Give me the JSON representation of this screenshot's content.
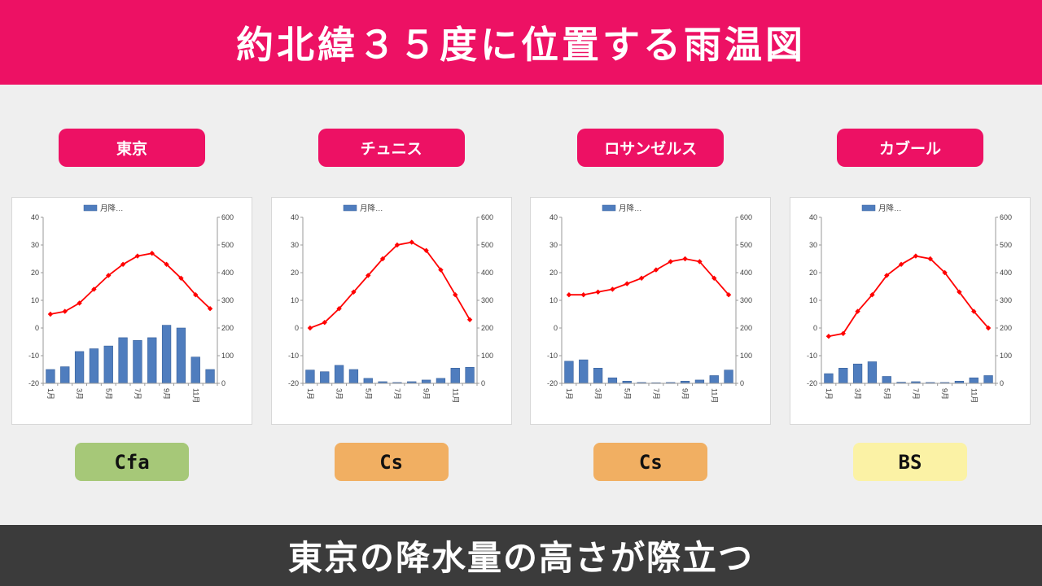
{
  "header": {
    "title": "約北緯３５度に位置する雨温図"
  },
  "footer": {
    "caption": "東京の降水量の高さが際立つ"
  },
  "colors": {
    "accent_pink": "#ED1164",
    "page_bg": "#EFEFEF",
    "footer_bg": "#3B3B3B",
    "bar_blue": "#4F7DBE",
    "bar_border": "#38609B",
    "line_red": "#FF0000",
    "axis_gray": "#9A9A9A",
    "tick_text": "#404040"
  },
  "axes": {
    "temp": {
      "min": -20,
      "max": 40,
      "ticks": [
        40,
        30,
        20,
        10,
        0,
        -10,
        -20
      ]
    },
    "precip": {
      "min": 0,
      "max": 600,
      "ticks": [
        600,
        500,
        400,
        300,
        200,
        100,
        0
      ]
    },
    "visible_month_ticks": [
      "1月",
      "3月",
      "5月",
      "7月",
      "9月",
      "11月"
    ]
  },
  "chart_data": [
    {
      "type": "bar+line",
      "city": "東京",
      "koppen": "Cfa",
      "koppen_color": "#A6C878",
      "legend": "月降…",
      "months": [
        "1月",
        "2月",
        "3月",
        "4月",
        "5月",
        "6月",
        "7月",
        "8月",
        "9月",
        "10月",
        "11月",
        "12月"
      ],
      "temperature_c": [
        5,
        6,
        9,
        14,
        19,
        23,
        26,
        27,
        23,
        18,
        12,
        7
      ],
      "precipitation_mm": [
        50,
        60,
        115,
        125,
        135,
        165,
        155,
        165,
        210,
        200,
        95,
        50
      ],
      "temp_axis_range": [
        -20,
        40
      ],
      "precip_axis_range": [
        0,
        600
      ]
    },
    {
      "type": "bar+line",
      "city": "チュニス",
      "koppen": "Cs",
      "koppen_color": "#F1AF62",
      "legend": "月降…",
      "months": [
        "1月",
        "2月",
        "3月",
        "4月",
        "5月",
        "6月",
        "7月",
        "8月",
        "9月",
        "10月",
        "11月",
        "12月"
      ],
      "temperature_c": [
        0,
        2,
        7,
        13,
        19,
        25,
        30,
        31,
        28,
        21,
        12,
        3
      ],
      "precipitation_mm": [
        48,
        42,
        65,
        50,
        18,
        6,
        3,
        6,
        12,
        18,
        55,
        58
      ],
      "temp_axis_range": [
        -20,
        40
      ],
      "precip_axis_range": [
        0,
        600
      ]
    },
    {
      "type": "bar+line",
      "city": "ロサンゼルス",
      "koppen": "Cs",
      "koppen_color": "#F1AF62",
      "legend": "月降…",
      "months": [
        "1月",
        "2月",
        "3月",
        "4月",
        "5月",
        "6月",
        "7月",
        "8月",
        "9月",
        "10月",
        "11月",
        "12月"
      ],
      "temperature_c": [
        12,
        12,
        13,
        14,
        16,
        18,
        21,
        24,
        25,
        24,
        18,
        12
      ],
      "precipitation_mm": [
        80,
        85,
        55,
        20,
        8,
        3,
        2,
        3,
        8,
        12,
        28,
        48
      ],
      "temp_axis_range": [
        -20,
        40
      ],
      "precip_axis_range": [
        0,
        600
      ]
    },
    {
      "type": "bar+line",
      "city": "カブール",
      "koppen": "BS",
      "koppen_color": "#FBF2A5",
      "legend": "月降…",
      "months": [
        "1月",
        "2月",
        "3月",
        "4月",
        "5月",
        "6月",
        "7月",
        "8月",
        "9月",
        "10月",
        "11月",
        "12月"
      ],
      "temperature_c": [
        -3,
        -2,
        6,
        12,
        19,
        23,
        26,
        25,
        20,
        13,
        6,
        0
      ],
      "precipitation_mm": [
        35,
        55,
        70,
        78,
        25,
        4,
        6,
        3,
        3,
        8,
        20,
        28
      ],
      "temp_axis_range": [
        -20,
        40
      ],
      "precip_axis_range": [
        0,
        600
      ]
    }
  ]
}
